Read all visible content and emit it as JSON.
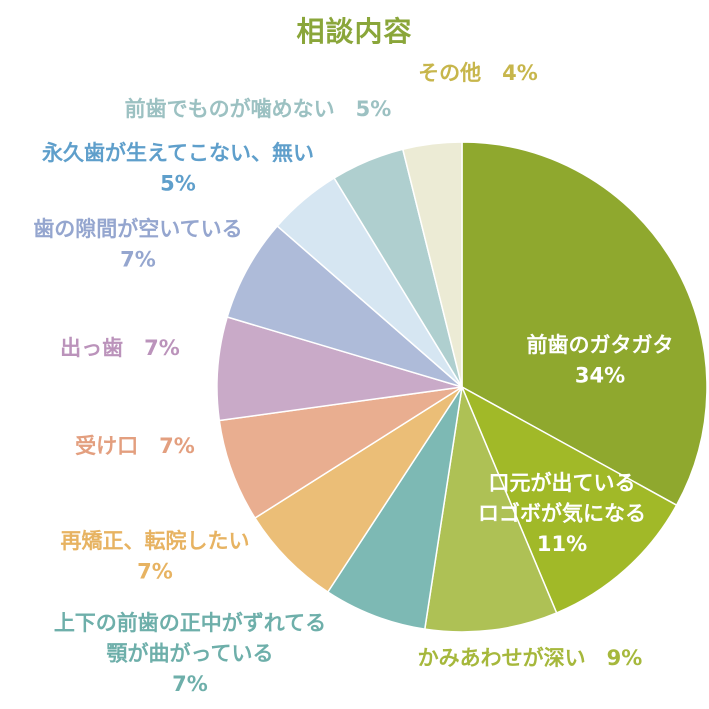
{
  "chart_data": {
    "type": "pie",
    "title": "相談内容",
    "slices": [
      {
        "label": "前歯のガタガタ",
        "value": 34,
        "value_text": "34%",
        "color": "#8fa82e"
      },
      {
        "label": "口元が出ている ロゴボが気になる",
        "label_lines": [
          "口元が出ている",
          "ロゴボが気になる"
        ],
        "value": 11,
        "value_text": "11%",
        "color": "#a1b928"
      },
      {
        "label": "かみあわせが深い",
        "value": 9,
        "value_text": "9%",
        "color": "#aec155"
      },
      {
        "label": "上下の前歯の正中がずれてる 顎が曲がっている",
        "label_lines": [
          "上下の前歯の正中がずれてる",
          "顎が曲がっている"
        ],
        "value": 7,
        "value_text": "7%",
        "color": "#7db9b4"
      },
      {
        "label": "再矯正、転院したい",
        "value": 7,
        "value_text": "7%",
        "color": "#ebbe77"
      },
      {
        "label": "受け口",
        "value": 7,
        "value_text": "7%",
        "color": "#e9ae90"
      },
      {
        "label": "出っ歯",
        "value": 7,
        "value_text": "7%",
        "color": "#c9aac8"
      },
      {
        "label": "歯の隙間が空いている",
        "value": 7,
        "value_text": "7%",
        "color": "#aebbd9"
      },
      {
        "label": "永久歯が生えてこない、無い",
        "value": 5,
        "value_text": "5%",
        "color": "#d6e6f2"
      },
      {
        "label": "前歯でものが噛めない",
        "value": 5,
        "value_text": "5%",
        "color": "#afcfcf"
      },
      {
        "label": "その他",
        "value": 4,
        "value_text": "4%",
        "color": "#ecebd5"
      }
    ]
  }
}
